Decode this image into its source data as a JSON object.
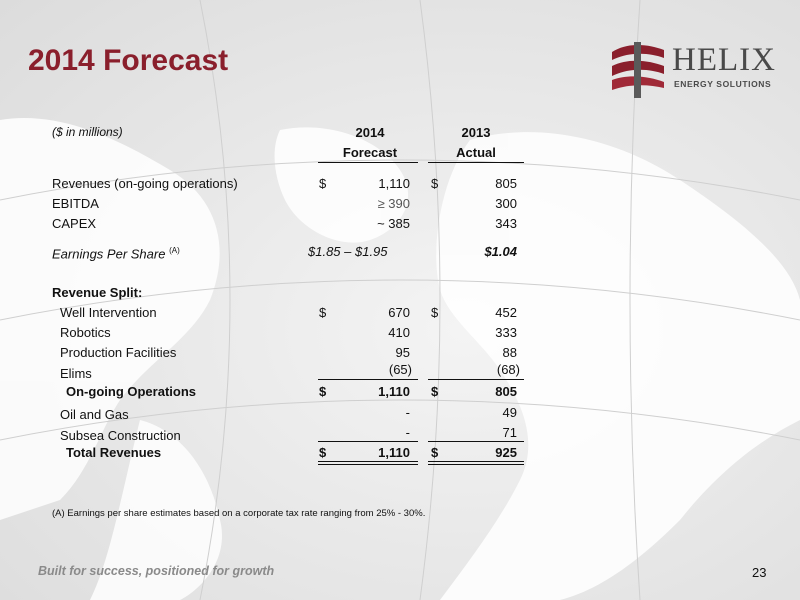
{
  "title": "2014 Forecast",
  "logo": {
    "brand": "HELIX",
    "tagline": "ENERGY SOLUTIONS"
  },
  "table": {
    "units": "($ in millions)",
    "col1": {
      "year": "2014",
      "label": "Forecast"
    },
    "col2": {
      "year": "2013",
      "label": "Actual"
    },
    "currency": "$",
    "summary": [
      {
        "label": "Revenues (on-going operations)",
        "v1": "1,110",
        "v2": "805"
      },
      {
        "label": "EBITDA",
        "v1": "≥ 390",
        "v2": "300"
      },
      {
        "label": "CAPEX",
        "v1": "~ 385",
        "v2": "343"
      }
    ],
    "eps": {
      "label": "Earnings Per Share",
      "note": "(A)",
      "v1": "$1.85 – $1.95",
      "v2": "$1.04"
    },
    "split_heading": "Revenue Split:",
    "split": [
      {
        "label": "Well Intervention",
        "v1": "670",
        "v2": "452"
      },
      {
        "label": "Robotics",
        "v1": "410",
        "v2": "333"
      },
      {
        "label": "Production Facilities",
        "v1": "95",
        "v2": "88"
      },
      {
        "label": "Elims",
        "v1": "(65)",
        "v2": "(68)"
      }
    ],
    "ongoing": {
      "label": "On-going Operations",
      "v1": "1,110",
      "v2": "805"
    },
    "other": [
      {
        "label": "Oil and Gas",
        "v1": "-",
        "v2": "49"
      },
      {
        "label": "Subsea Construction",
        "v1": "-",
        "v2": "71"
      }
    ],
    "total": {
      "label": "Total Revenues",
      "v1": "1,110",
      "v2": "925"
    }
  },
  "footnote": "(A)   Earnings per share estimates based on a corporate tax rate ranging from  25% - 30%.",
  "tagline": "Built for success, positioned for growth",
  "page_number": "23"
}
